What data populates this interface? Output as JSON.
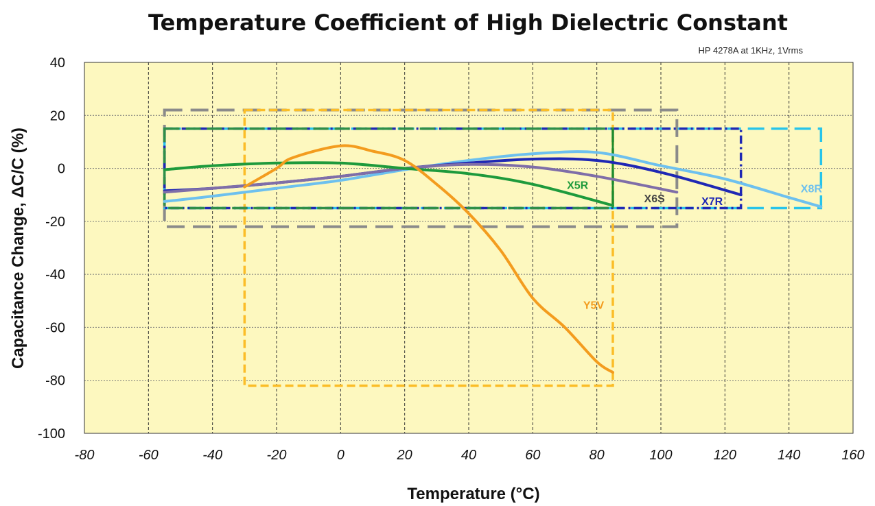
{
  "chart_data": {
    "type": "line",
    "title": "Temperature Coefficient of High Dielectric Constant",
    "subtitle": "HP 4278A at 1KHz, 1Vrms",
    "xlabel": "Temperature (°C)",
    "ylabel": "Capacitance Change, ΔC/C (%)",
    "xlim": [
      -80,
      160
    ],
    "ylim": [
      -100,
      40
    ],
    "xticks": [
      -80,
      -60,
      -40,
      -20,
      0,
      20,
      40,
      60,
      80,
      100,
      120,
      140,
      160
    ],
    "yticks": [
      40,
      20,
      0,
      -20,
      -40,
      -60,
      -80,
      -100
    ],
    "grid": true,
    "colors": {
      "plot_background": "#fdf8bf",
      "grid": "#333333",
      "X5R": "#1e9a3c",
      "X6S": "#7f6ea8",
      "X7R": "#1f28b4",
      "X8R": "#6dc0ee",
      "Y5V": "#f39c1e"
    },
    "series": [
      {
        "name": "X5R",
        "x": [
          -55,
          -40,
          -20,
          0,
          20,
          40,
          60,
          85
        ],
        "y": [
          -0.5,
          1,
          2,
          2,
          0,
          -2,
          -6,
          -14
        ],
        "spec": {
          "tmin": -55,
          "tmax": 85,
          "dmin": -15,
          "dmax": 15
        }
      },
      {
        "name": "X6S",
        "x": [
          -55,
          -40,
          -20,
          0,
          20,
          40,
          60,
          80,
          105
        ],
        "y": [
          -9,
          -7.5,
          -5.5,
          -3,
          0,
          1.5,
          0.5,
          -3,
          -9
        ],
        "spec": {
          "tmin": -55,
          "tmax": 105,
          "dmin": -22,
          "dmax": 22
        }
      },
      {
        "name": "X7R",
        "x": [
          -55,
          -40,
          -20,
          0,
          20,
          40,
          60,
          80,
          100,
          125
        ],
        "y": [
          -8.5,
          -7.5,
          -5.5,
          -3,
          0,
          2,
          3.5,
          3,
          -1.5,
          -10
        ],
        "spec": {
          "tmin": -55,
          "tmax": 125,
          "dmin": -15,
          "dmax": 15
        }
      },
      {
        "name": "X8R",
        "x": [
          -55,
          -40,
          -20,
          0,
          20,
          40,
          60,
          80,
          100,
          120,
          140,
          150
        ],
        "y": [
          -12.5,
          -10.5,
          -7.5,
          -4.5,
          -0.5,
          3,
          5.5,
          6,
          1,
          -4,
          -11,
          -14.5
        ],
        "spec": {
          "tmin": -55,
          "tmax": 150,
          "dmin": -15,
          "dmax": 15
        }
      },
      {
        "name": "Y5V",
        "x": [
          -30,
          -20,
          -15,
          0,
          10,
          20,
          30,
          40,
          50,
          60,
          70,
          80,
          85
        ],
        "y": [
          -7,
          0,
          4,
          8.5,
          6.5,
          3,
          -6,
          -17,
          -31,
          -49,
          -60,
          -73,
          -77
        ],
        "spec": {
          "tmin": -30,
          "tmax": 85,
          "dmin": -82,
          "dmax": 22
        }
      }
    ]
  }
}
